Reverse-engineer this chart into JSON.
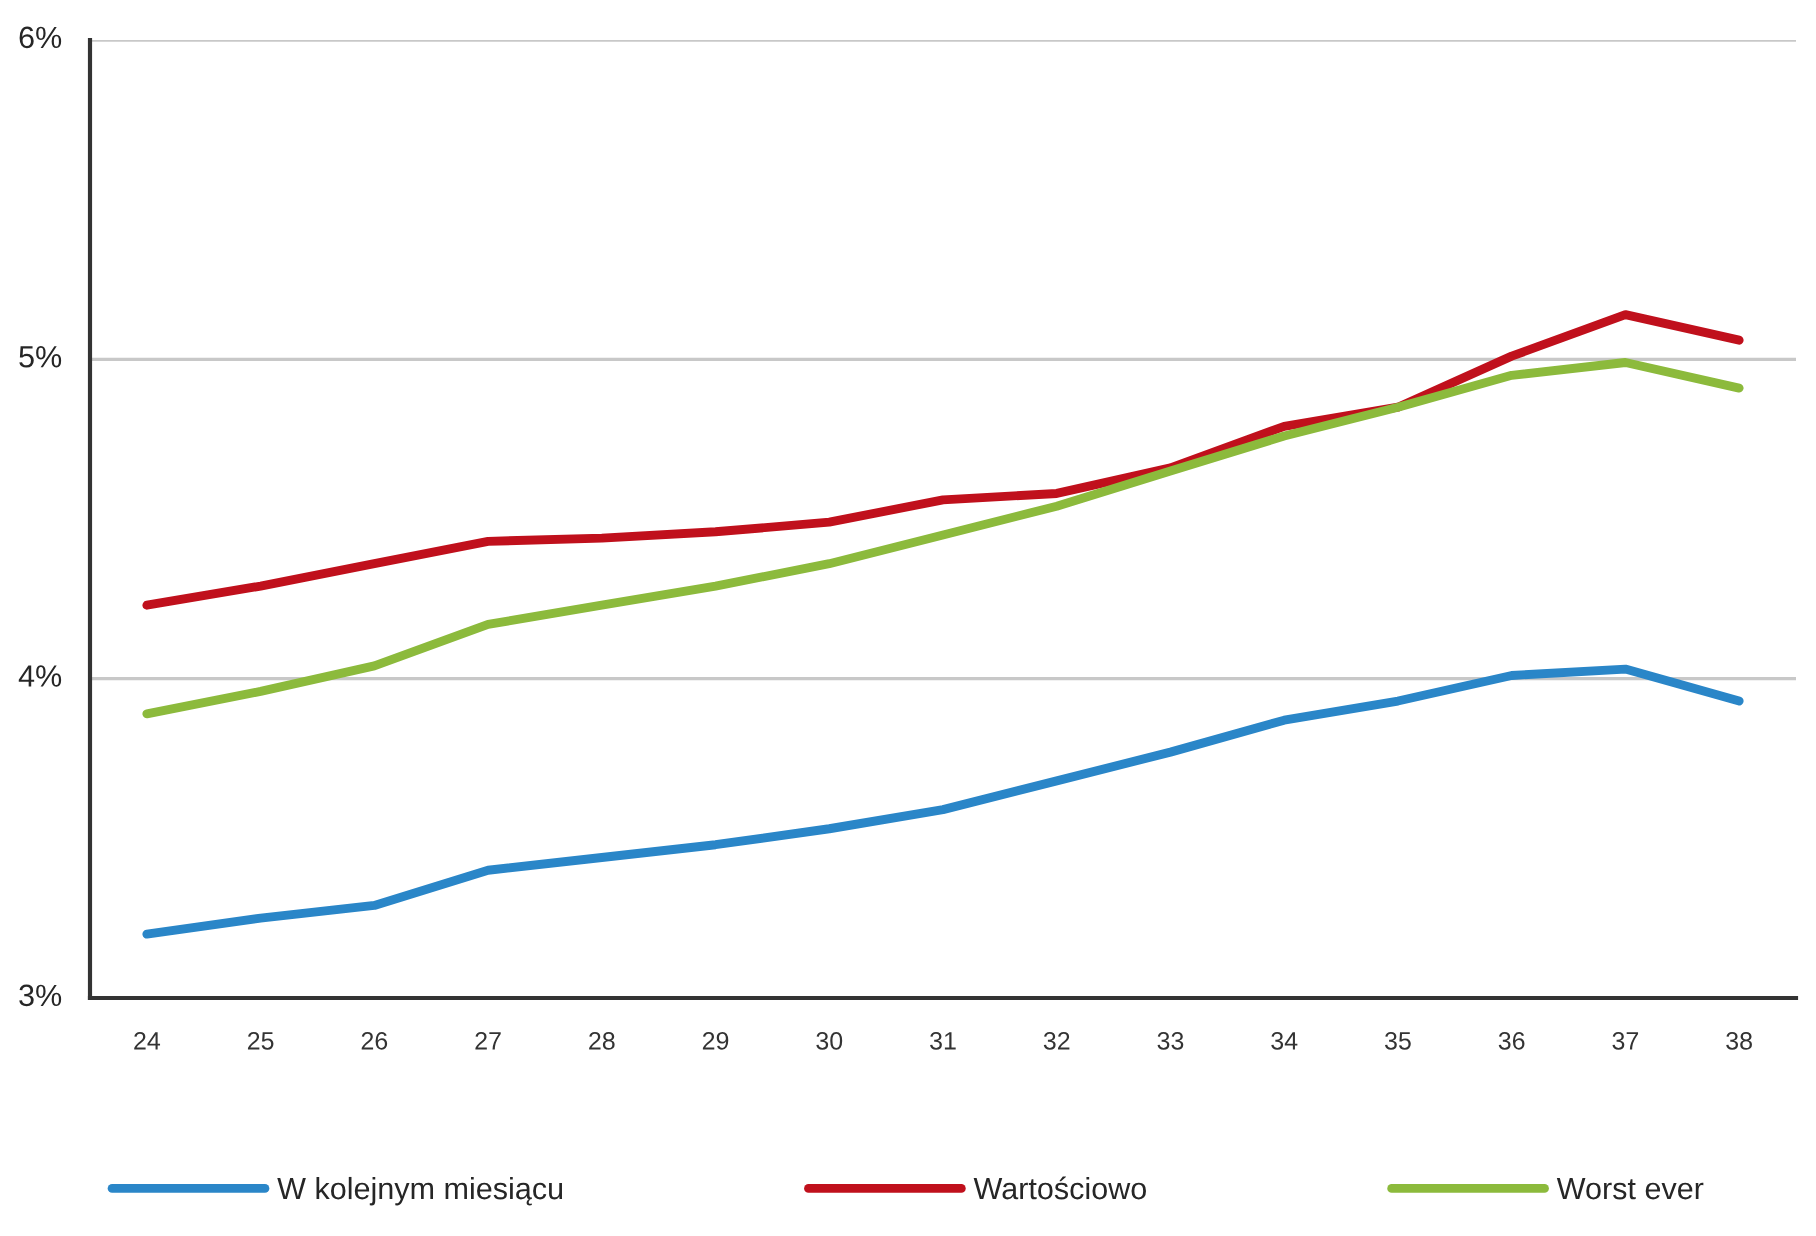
{
  "chart_data": {
    "type": "line",
    "categories": [
      "24",
      "25",
      "26",
      "27",
      "28",
      "29",
      "30",
      "31",
      "32",
      "33",
      "34",
      "35",
      "36",
      "37",
      "38"
    ],
    "series": [
      {
        "name": "W kolejnym miesiącu",
        "color": "#2a86c8",
        "values": [
          3.2,
          3.25,
          3.29,
          3.4,
          3.44,
          3.48,
          3.53,
          3.59,
          3.68,
          3.77,
          3.87,
          3.93,
          4.01,
          4.03,
          3.93
        ]
      },
      {
        "name": "Wartościowo",
        "color": "#c0101c",
        "values": [
          4.23,
          4.29,
          4.36,
          4.43,
          4.44,
          4.46,
          4.49,
          4.56,
          4.58,
          4.66,
          4.79,
          4.85,
          5.01,
          5.14,
          5.06
        ]
      },
      {
        "name": "Worst ever",
        "color": "#8cba3c",
        "values": [
          3.89,
          3.96,
          4.04,
          4.17,
          4.23,
          4.29,
          4.36,
          4.45,
          4.54,
          4.65,
          4.76,
          4.85,
          4.95,
          4.99,
          4.91
        ]
      }
    ],
    "ylim": [
      3,
      6
    ],
    "yticks": [
      {
        "value": 3,
        "label": "3%"
      },
      {
        "value": 4,
        "label": "4%"
      },
      {
        "value": 5,
        "label": "5%"
      },
      {
        "value": 6,
        "label": "6%"
      }
    ],
    "grid": "y",
    "legend": "bottom",
    "marker": "none",
    "line_style": "solid"
  }
}
